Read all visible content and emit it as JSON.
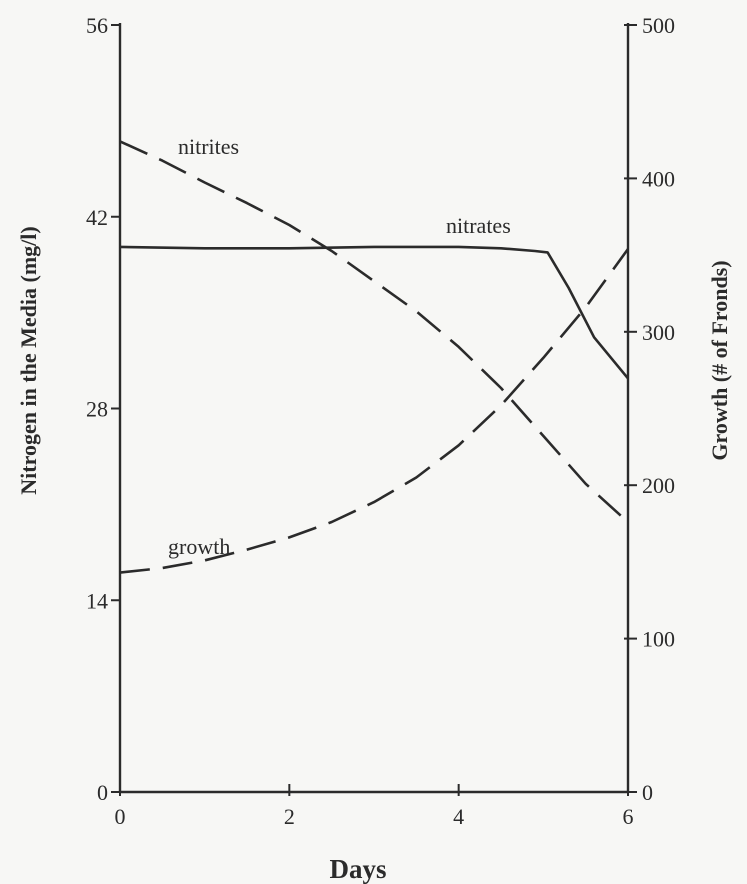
{
  "chart_data": {
    "type": "line",
    "xlabel": "Days",
    "ylabel": "Nitrogen in the Media (mg/l)",
    "y2label": "Growth (# of Fronds)",
    "xlim": [
      0,
      6
    ],
    "ylim": [
      0,
      56
    ],
    "y2lim": [
      0,
      500
    ],
    "xticks": [
      0,
      2,
      4,
      6
    ],
    "yticks": [
      0,
      14,
      28,
      42,
      56
    ],
    "y2ticks": [
      0,
      100,
      200,
      300,
      400,
      500
    ],
    "grid": false,
    "legend": "none",
    "series": [
      {
        "name": "nitrites",
        "axis": "left",
        "style": "dashed",
        "x": [
          0,
          0.5,
          1,
          1.5,
          2,
          2.5,
          3,
          3.5,
          4,
          4.5,
          5,
          5.5,
          6
        ],
        "y": [
          47.5,
          46.1,
          44.5,
          43.0,
          41.4,
          39.5,
          37.3,
          35.1,
          32.5,
          29.5,
          26.0,
          22.5,
          19.7
        ]
      },
      {
        "name": "nitrates",
        "axis": "left",
        "style": "solid",
        "x": [
          0,
          1,
          2,
          3,
          4,
          4.5,
          4.9,
          5.05,
          5.3,
          5.6,
          6
        ],
        "y": [
          39.8,
          39.7,
          39.7,
          39.8,
          39.8,
          39.7,
          39.5,
          39.4,
          36.8,
          33.2,
          30.2
        ]
      },
      {
        "name": "growth",
        "axis": "right",
        "style": "dashed",
        "x": [
          0,
          0.5,
          1,
          1.5,
          2,
          2.5,
          3,
          3.5,
          4,
          4.5,
          5,
          5.5,
          6
        ],
        "y": [
          143,
          146,
          151,
          158,
          166,
          176,
          189,
          205,
          226,
          252,
          283,
          316,
          354
        ]
      }
    ],
    "annotations": [
      {
        "text": "nitrites",
        "series": "nitrites"
      },
      {
        "text": "nitrates",
        "series": "nitrates"
      },
      {
        "text": "growth",
        "series": "growth"
      }
    ]
  }
}
